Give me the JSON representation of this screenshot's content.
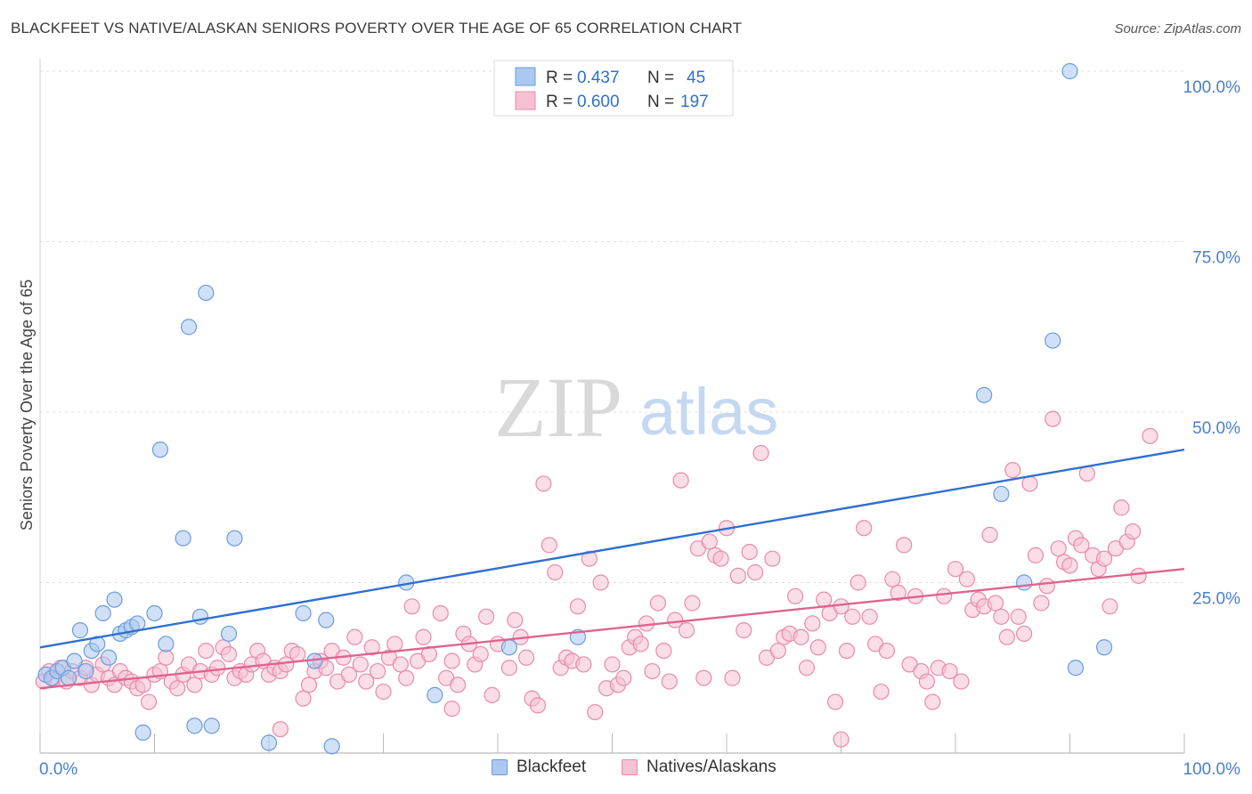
{
  "header": {
    "title": "BLACKFEET VS NATIVE/ALASKAN SENIORS POVERTY OVER THE AGE OF 65 CORRELATION CHART",
    "source": "Source: ZipAtlas.com"
  },
  "watermark": {
    "zip": "ZIP",
    "atlas": "atlas"
  },
  "colors": {
    "blue_fill": "#aac8f0",
    "blue_stroke": "#6a9be0",
    "blue_line": "#2f6fd1",
    "pink_fill": "#f6c1d2",
    "pink_stroke": "#e98aab",
    "pink_line": "#e0628f",
    "axis_text": "#4a7fd0",
    "grid": "#dddddd"
  },
  "chart_data": {
    "type": "scatter",
    "title": "BLACKFEET VS NATIVE/ALASKAN SENIORS POVERTY OVER THE AGE OF 65 CORRELATION CHART",
    "xlabel": "",
    "ylabel": "Seniors Poverty Over the Age of 65",
    "xlim": [
      0,
      100
    ],
    "ylim": [
      0,
      100
    ],
    "x_tick_labels": [
      "0.0%",
      "100.0%"
    ],
    "y_tick_labels": [
      "25.0%",
      "50.0%",
      "75.0%",
      "100.0%"
    ],
    "y_ticks": [
      25,
      50,
      75,
      100
    ],
    "grid": "horizontal dashed",
    "legend_position": "top-center",
    "stats": [
      {
        "r_label": "R =",
        "r_value": "0.437",
        "n_label": "N =",
        "n_value": "45"
      },
      {
        "r_label": "R =",
        "r_value": "0.600",
        "n_label": "N =",
        "n_value": "197"
      }
    ],
    "series": [
      {
        "name": "Blackfeet",
        "trend": {
          "x": [
            0,
            100
          ],
          "y": [
            15.5,
            44.5
          ]
        },
        "points": [
          [
            0.5,
            11.5
          ],
          [
            1.0,
            11.0
          ],
          [
            1.5,
            12.0
          ],
          [
            2.0,
            12.5
          ],
          [
            2.5,
            11.0
          ],
          [
            3.0,
            13.5
          ],
          [
            3.5,
            18.0
          ],
          [
            4.0,
            12.0
          ],
          [
            4.5,
            15.0
          ],
          [
            5.0,
            16.0
          ],
          [
            5.5,
            20.5
          ],
          [
            6.0,
            14.0
          ],
          [
            6.5,
            22.5
          ],
          [
            7.0,
            17.5
          ],
          [
            7.5,
            18.0
          ],
          [
            8.0,
            18.5
          ],
          [
            8.5,
            19.0
          ],
          [
            9.0,
            3.0
          ],
          [
            10.0,
            20.5
          ],
          [
            10.5,
            44.5
          ],
          [
            11.0,
            16.0
          ],
          [
            12.5,
            31.5
          ],
          [
            13.0,
            62.5
          ],
          [
            13.5,
            4.0
          ],
          [
            14.0,
            20.0
          ],
          [
            14.5,
            67.5
          ],
          [
            15.0,
            4.0
          ],
          [
            16.5,
            17.5
          ],
          [
            17.0,
            31.5
          ],
          [
            20.0,
            1.5
          ],
          [
            23.0,
            20.5
          ],
          [
            24.0,
            13.5
          ],
          [
            25.0,
            19.5
          ],
          [
            25.5,
            1.0
          ],
          [
            32.0,
            25.0
          ],
          [
            34.5,
            8.5
          ],
          [
            41.0,
            15.5
          ],
          [
            47.0,
            17.0
          ],
          [
            82.5,
            52.5
          ],
          [
            84.0,
            38.0
          ],
          [
            86.0,
            25.0
          ],
          [
            88.5,
            60.5
          ],
          [
            90.0,
            100.0
          ],
          [
            90.5,
            12.5
          ],
          [
            93.0,
            15.5
          ]
        ]
      },
      {
        "name": "Natives/Alaskans",
        "trend": {
          "x": [
            0,
            100
          ],
          "y": [
            9.5,
            27.0
          ]
        },
        "points": [
          [
            0.3,
            10.5
          ],
          [
            0.8,
            12.0
          ],
          [
            1.2,
            11.0
          ],
          [
            1.8,
            12.5
          ],
          [
            2.3,
            10.5
          ],
          [
            2.8,
            12.0
          ],
          [
            3.5,
            11.0
          ],
          [
            4.0,
            12.5
          ],
          [
            4.5,
            10.0
          ],
          [
            5.0,
            11.5
          ],
          [
            5.5,
            13.0
          ],
          [
            6.0,
            11.0
          ],
          [
            6.5,
            10.0
          ],
          [
            7.0,
            12.0
          ],
          [
            7.5,
            11.0
          ],
          [
            8.0,
            10.5
          ],
          [
            8.5,
            9.5
          ],
          [
            9.0,
            10.0
          ],
          [
            9.5,
            7.5
          ],
          [
            10.0,
            11.5
          ],
          [
            10.5,
            12.0
          ],
          [
            11.0,
            14.0
          ],
          [
            11.5,
            10.5
          ],
          [
            12.0,
            9.5
          ],
          [
            12.5,
            11.5
          ],
          [
            13.0,
            13.0
          ],
          [
            13.5,
            10.0
          ],
          [
            14.0,
            12.0
          ],
          [
            14.5,
            15.0
          ],
          [
            15.0,
            11.5
          ],
          [
            15.5,
            12.5
          ],
          [
            16.0,
            15.5
          ],
          [
            16.5,
            14.5
          ],
          [
            17.0,
            11.0
          ],
          [
            17.5,
            12.0
          ],
          [
            18.0,
            11.5
          ],
          [
            18.5,
            13.0
          ],
          [
            19.0,
            15.0
          ],
          [
            19.5,
            13.5
          ],
          [
            20.0,
            11.5
          ],
          [
            20.5,
            12.5
          ],
          [
            21.0,
            12.0
          ],
          [
            21.5,
            13.0
          ],
          [
            22.0,
            15.0
          ],
          [
            22.5,
            14.5
          ],
          [
            23.0,
            8.0
          ],
          [
            23.5,
            10.0
          ],
          [
            24.0,
            12.0
          ],
          [
            24.5,
            13.5
          ],
          [
            25.0,
            12.5
          ],
          [
            25.5,
            15.0
          ],
          [
            26.0,
            10.5
          ],
          [
            26.5,
            14.0
          ],
          [
            27.0,
            11.5
          ],
          [
            27.5,
            17.0
          ],
          [
            28.0,
            13.0
          ],
          [
            28.5,
            10.5
          ],
          [
            29.0,
            15.5
          ],
          [
            29.5,
            12.0
          ],
          [
            30.0,
            9.0
          ],
          [
            30.5,
            14.0
          ],
          [
            31.0,
            16.0
          ],
          [
            31.5,
            13.0
          ],
          [
            32.0,
            11.0
          ],
          [
            32.5,
            21.5
          ],
          [
            33.0,
            13.5
          ],
          [
            33.5,
            17.0
          ],
          [
            34.0,
            14.5
          ],
          [
            35.0,
            20.5
          ],
          [
            35.5,
            11.0
          ],
          [
            36.0,
            13.5
          ],
          [
            36.5,
            10.0
          ],
          [
            37.0,
            17.5
          ],
          [
            37.5,
            16.0
          ],
          [
            38.0,
            13.0
          ],
          [
            38.5,
            14.5
          ],
          [
            39.0,
            20.0
          ],
          [
            39.5,
            8.5
          ],
          [
            40.0,
            16.0
          ],
          [
            41.0,
            12.5
          ],
          [
            41.5,
            19.5
          ],
          [
            42.0,
            17.0
          ],
          [
            42.5,
            14.0
          ],
          [
            43.0,
            8.0
          ],
          [
            43.5,
            7.0
          ],
          [
            44.0,
            39.5
          ],
          [
            44.5,
            30.5
          ],
          [
            45.0,
            26.5
          ],
          [
            45.5,
            12.5
          ],
          [
            46.0,
            14.0
          ],
          [
            46.5,
            13.5
          ],
          [
            47.0,
            21.5
          ],
          [
            47.5,
            13.0
          ],
          [
            48.0,
            28.5
          ],
          [
            48.5,
            6.0
          ],
          [
            49.0,
            25.0
          ],
          [
            49.5,
            9.5
          ],
          [
            50.0,
            13.0
          ],
          [
            50.5,
            10.0
          ],
          [
            51.0,
            11.0
          ],
          [
            51.5,
            15.5
          ],
          [
            52.0,
            17.0
          ],
          [
            52.5,
            16.0
          ],
          [
            53.0,
            19.0
          ],
          [
            53.5,
            12.0
          ],
          [
            54.0,
            22.0
          ],
          [
            54.5,
            15.0
          ],
          [
            55.0,
            10.5
          ],
          [
            55.5,
            19.5
          ],
          [
            56.0,
            40.0
          ],
          [
            56.5,
            18.0
          ],
          [
            57.0,
            22.0
          ],
          [
            57.5,
            30.0
          ],
          [
            58.0,
            11.0
          ],
          [
            58.5,
            31.0
          ],
          [
            59.0,
            29.0
          ],
          [
            59.5,
            28.5
          ],
          [
            60.0,
            33.0
          ],
          [
            60.5,
            11.0
          ],
          [
            61.0,
            26.0
          ],
          [
            61.5,
            18.0
          ],
          [
            62.0,
            29.5
          ],
          [
            62.5,
            26.5
          ],
          [
            63.0,
            44.0
          ],
          [
            63.5,
            14.0
          ],
          [
            64.0,
            28.5
          ],
          [
            64.5,
            15.0
          ],
          [
            65.0,
            17.0
          ],
          [
            65.5,
            17.5
          ],
          [
            66.0,
            23.0
          ],
          [
            66.5,
            17.0
          ],
          [
            67.0,
            12.5
          ],
          [
            67.5,
            19.0
          ],
          [
            68.0,
            15.5
          ],
          [
            68.5,
            22.5
          ],
          [
            69.0,
            20.5
          ],
          [
            69.5,
            7.5
          ],
          [
            70.0,
            21.5
          ],
          [
            70.5,
            15.0
          ],
          [
            71.0,
            20.0
          ],
          [
            71.5,
            25.0
          ],
          [
            72.0,
            33.0
          ],
          [
            72.5,
            20.0
          ],
          [
            73.0,
            16.0
          ],
          [
            73.5,
            9.0
          ],
          [
            74.0,
            15.0
          ],
          [
            74.5,
            25.5
          ],
          [
            75.0,
            23.5
          ],
          [
            75.5,
            30.5
          ],
          [
            76.0,
            13.0
          ],
          [
            76.5,
            23.0
          ],
          [
            77.0,
            12.0
          ],
          [
            77.5,
            10.5
          ],
          [
            78.0,
            7.5
          ],
          [
            78.5,
            12.5
          ],
          [
            79.0,
            23.0
          ],
          [
            79.5,
            12.0
          ],
          [
            80.0,
            27.0
          ],
          [
            80.5,
            10.5
          ],
          [
            81.0,
            25.5
          ],
          [
            81.5,
            21.0
          ],
          [
            82.0,
            22.5
          ],
          [
            82.5,
            21.5
          ],
          [
            83.0,
            32.0
          ],
          [
            83.5,
            22.0
          ],
          [
            84.0,
            20.0
          ],
          [
            84.5,
            17.0
          ],
          [
            85.0,
            41.5
          ],
          [
            85.5,
            20.0
          ],
          [
            86.0,
            17.5
          ],
          [
            86.5,
            39.5
          ],
          [
            87.0,
            29.0
          ],
          [
            87.5,
            22.0
          ],
          [
            88.0,
            24.5
          ],
          [
            88.5,
            49.0
          ],
          [
            89.0,
            30.0
          ],
          [
            89.5,
            28.0
          ],
          [
            90.0,
            27.5
          ],
          [
            90.5,
            31.5
          ],
          [
            91.0,
            30.5
          ],
          [
            91.5,
            41.0
          ],
          [
            92.0,
            29.0
          ],
          [
            92.5,
            27.0
          ],
          [
            93.0,
            28.5
          ],
          [
            93.5,
            21.5
          ],
          [
            94.0,
            30.0
          ],
          [
            94.5,
            36.0
          ],
          [
            95.0,
            31.0
          ],
          [
            95.5,
            32.5
          ],
          [
            96.0,
            26.0
          ],
          [
            97.0,
            46.5
          ],
          [
            36.0,
            6.5
          ],
          [
            70.0,
            2.0
          ],
          [
            21.0,
            3.5
          ]
        ]
      }
    ]
  },
  "legend": {
    "items": [
      {
        "label": "Blackfeet"
      },
      {
        "label": "Natives/Alaskans"
      }
    ]
  }
}
